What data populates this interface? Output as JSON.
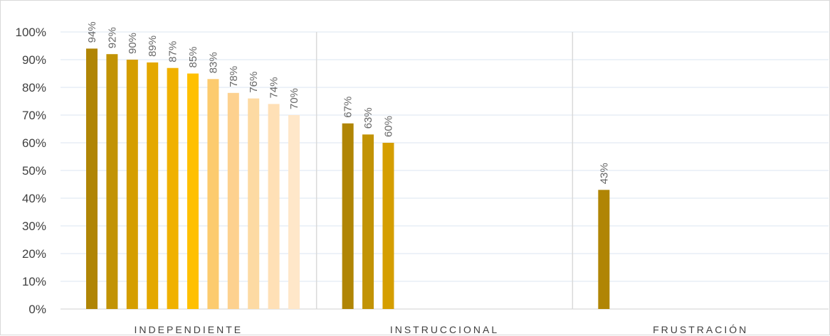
{
  "chart_data": {
    "type": "bar",
    "title": "",
    "xlabel": "",
    "ylabel": "",
    "ylim": [
      0,
      1
    ],
    "y_ticks": [
      "0%",
      "10%",
      "20%",
      "30%",
      "40%",
      "50%",
      "60%",
      "70%",
      "80%",
      "90%",
      "100%"
    ],
    "grid": true,
    "legend": "none",
    "groups": [
      {
        "label": "INDEPENDIENTE",
        "values": [
          0.94,
          0.92,
          0.9,
          0.89,
          0.87,
          0.85,
          0.83,
          0.78,
          0.76,
          0.74,
          0.7
        ],
        "value_labels": [
          "94%",
          "92%",
          "90%",
          "89%",
          "87%",
          "85%",
          "83%",
          "78%",
          "76%",
          "74%",
          "70%"
        ],
        "colors": [
          "#B08505",
          "#C29305",
          "#D59E00",
          "#E4A800",
          "#F0B100",
          "#FFC000",
          "#FCCB6E",
          "#FDD18F",
          "#FDDAA3",
          "#FFE0B6",
          "#FFE7C9"
        ]
      },
      {
        "label": "INSTRUCCIONAL",
        "values": [
          0.67,
          0.63,
          0.6
        ],
        "value_labels": [
          "67%",
          "63%",
          "60%"
        ],
        "colors": [
          "#B08505",
          "#C29305",
          "#D59E00"
        ]
      },
      {
        "label": "FRUSTRACIÓN",
        "values": [
          0.43
        ],
        "value_labels": [
          "43%"
        ],
        "colors": [
          "#B08505"
        ]
      }
    ]
  }
}
